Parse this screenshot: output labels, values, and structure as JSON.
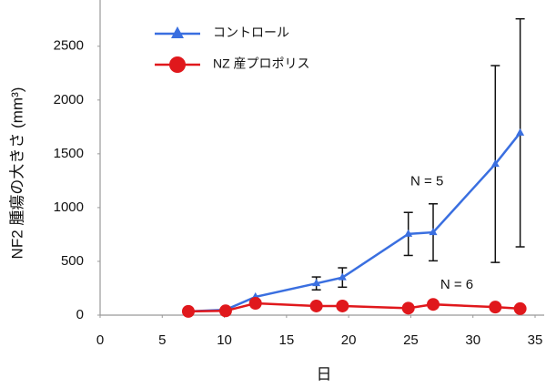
{
  "chart_data": {
    "type": "line",
    "x_label": "日",
    "y_label": "NF2 腫瘍の大きさ (mm³)",
    "xlim": [
      0,
      35
    ],
    "xticks": [
      0,
      5,
      10,
      15,
      20,
      25,
      30,
      35
    ],
    "ylim": [
      0,
      2930
    ],
    "yticks": [
      0,
      500,
      1000,
      1500,
      2000,
      2500
    ],
    "series": [
      {
        "name": "コントロール",
        "color": "#3a6fe0",
        "marker": "triangle",
        "x": [
          7.1,
          10.1,
          12.5,
          17.4,
          19.5,
          24.8,
          26.8,
          31.8,
          33.8
        ],
        "values": [
          35,
          50,
          170,
          295,
          350,
          755,
          770,
          1405,
          1695
        ],
        "errors": [
          null,
          null,
          null,
          60,
          90,
          200,
          265,
          915,
          1060
        ]
      },
      {
        "name": "NZ 産プロポリス",
        "color": "#e0181c",
        "marker": "circle",
        "x": [
          7.1,
          10.1,
          12.5,
          17.4,
          19.5,
          24.8,
          26.8,
          31.8,
          33.8
        ],
        "values": [
          35,
          40,
          110,
          85,
          85,
          65,
          100,
          75,
          60
        ]
      }
    ],
    "annotations": [
      {
        "text": "N = 5",
        "x": 26.3,
        "y": 1240
      },
      {
        "text": "N = 6",
        "x": 28.7,
        "y": 280
      }
    ]
  }
}
